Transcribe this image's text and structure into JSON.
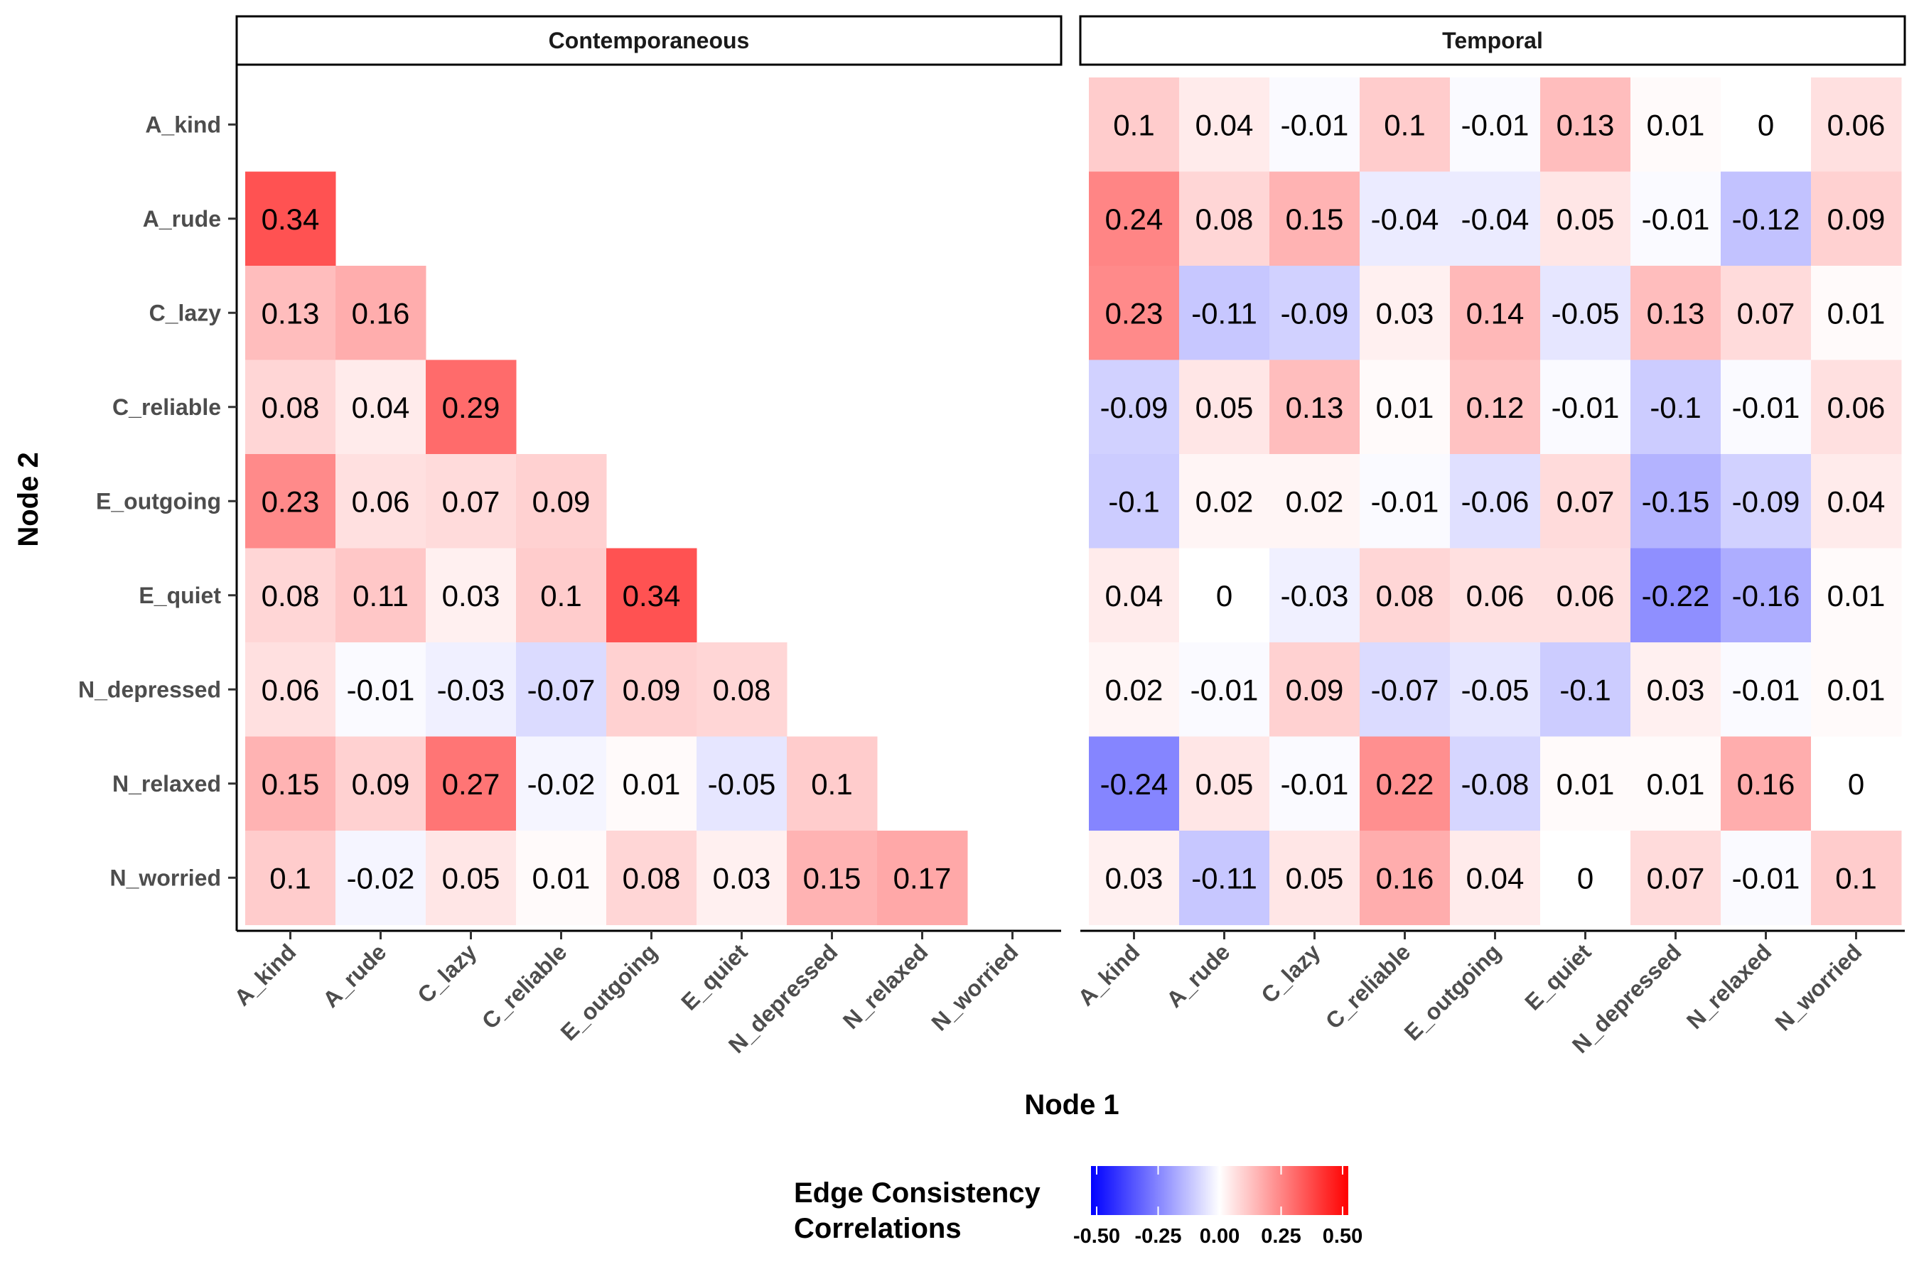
{
  "chart_data": {
    "type": "heatmap",
    "nodes": [
      "A_kind",
      "A_rude",
      "C_lazy",
      "C_reliable",
      "E_outgoing",
      "E_quiet",
      "N_depressed",
      "N_relaxed",
      "N_worried"
    ],
    "xlabel": "Node 1",
    "ylabel": "Node 2",
    "panels": [
      {
        "name": "Contemporaneous",
        "values": [
          [
            null,
            null,
            null,
            null,
            null,
            null,
            null,
            null,
            null
          ],
          [
            0.34,
            null,
            null,
            null,
            null,
            null,
            null,
            null,
            null
          ],
          [
            0.13,
            0.16,
            null,
            null,
            null,
            null,
            null,
            null,
            null
          ],
          [
            0.08,
            0.04,
            0.29,
            null,
            null,
            null,
            null,
            null,
            null
          ],
          [
            0.23,
            0.06,
            0.07,
            0.09,
            null,
            null,
            null,
            null,
            null
          ],
          [
            0.08,
            0.11,
            0.03,
            0.1,
            0.34,
            null,
            null,
            null,
            null
          ],
          [
            0.06,
            -0.01,
            -0.03,
            -0.07,
            0.09,
            0.08,
            null,
            null,
            null
          ],
          [
            0.15,
            0.09,
            0.27,
            -0.02,
            0.01,
            -0.05,
            0.1,
            null,
            null
          ],
          [
            0.1,
            -0.02,
            0.05,
            0.01,
            0.08,
            0.03,
            0.15,
            0.17,
            null
          ]
        ]
      },
      {
        "name": "Temporal",
        "values": [
          [
            0.1,
            0.04,
            -0.01,
            0.1,
            -0.01,
            0.13,
            0.01,
            0,
            0.06
          ],
          [
            0.24,
            0.08,
            0.15,
            -0.04,
            -0.04,
            0.05,
            -0.01,
            -0.12,
            0.09
          ],
          [
            0.23,
            -0.11,
            -0.09,
            0.03,
            0.14,
            -0.05,
            0.13,
            0.07,
            0.01
          ],
          [
            -0.09,
            0.05,
            0.13,
            0.01,
            0.12,
            -0.01,
            -0.1,
            -0.01,
            0.06
          ],
          [
            -0.1,
            0.02,
            0.02,
            -0.01,
            -0.06,
            0.07,
            -0.15,
            -0.09,
            0.04
          ],
          [
            0.04,
            0,
            -0.03,
            0.08,
            0.06,
            0.06,
            -0.22,
            -0.16,
            0.01
          ],
          [
            0.02,
            -0.01,
            0.09,
            -0.07,
            -0.05,
            -0.1,
            0.03,
            -0.01,
            0.01
          ],
          [
            -0.24,
            0.05,
            -0.01,
            0.22,
            -0.08,
            0.01,
            0.01,
            0.16,
            0
          ],
          [
            0.03,
            -0.11,
            0.05,
            0.16,
            0.04,
            0,
            0.07,
            -0.01,
            0.1
          ]
        ]
      }
    ],
    "legend": {
      "title_lines": [
        "Edge Consistency",
        "Correlations"
      ],
      "range": [
        -0.5,
        0.5
      ],
      "ticks": [
        -0.5,
        -0.25,
        0,
        0.25,
        0.5
      ],
      "tick_labels": [
        "-0.50",
        "-0.25",
        "0.00",
        "0.25",
        "0.50"
      ],
      "colors": {
        "low": "#0000ff",
        "mid": "#ffffff",
        "high": "#ff0000"
      },
      "placement": "bottom"
    }
  }
}
